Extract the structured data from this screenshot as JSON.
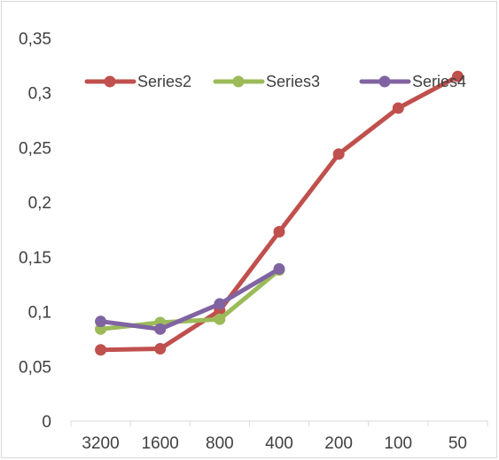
{
  "chart_data": {
    "type": "line",
    "title": "",
    "xlabel": "",
    "ylabel": "",
    "categories": [
      "3200",
      "1600",
      "800",
      "400",
      "200",
      "100",
      "50"
    ],
    "ylim": [
      0,
      0.35
    ],
    "yticks": [
      "0",
      "0,05",
      "0,1",
      "0,15",
      "0,2",
      "0,25",
      "0,3",
      "0,35"
    ],
    "grid": false,
    "legend_position": "top",
    "series": [
      {
        "name": "Series2",
        "color": "#c0504d",
        "values": [
          0.065,
          0.066,
          0.101,
          0.173,
          0.244,
          0.286,
          0.315
        ]
      },
      {
        "name": "Series3",
        "color": "#9bbb59",
        "values": [
          0.084,
          0.09,
          0.093,
          0.138,
          null,
          null,
          null
        ]
      },
      {
        "name": "Series4",
        "color": "#8064a2",
        "values": [
          0.091,
          0.084,
          0.107,
          0.139,
          null,
          null,
          null
        ]
      }
    ]
  }
}
